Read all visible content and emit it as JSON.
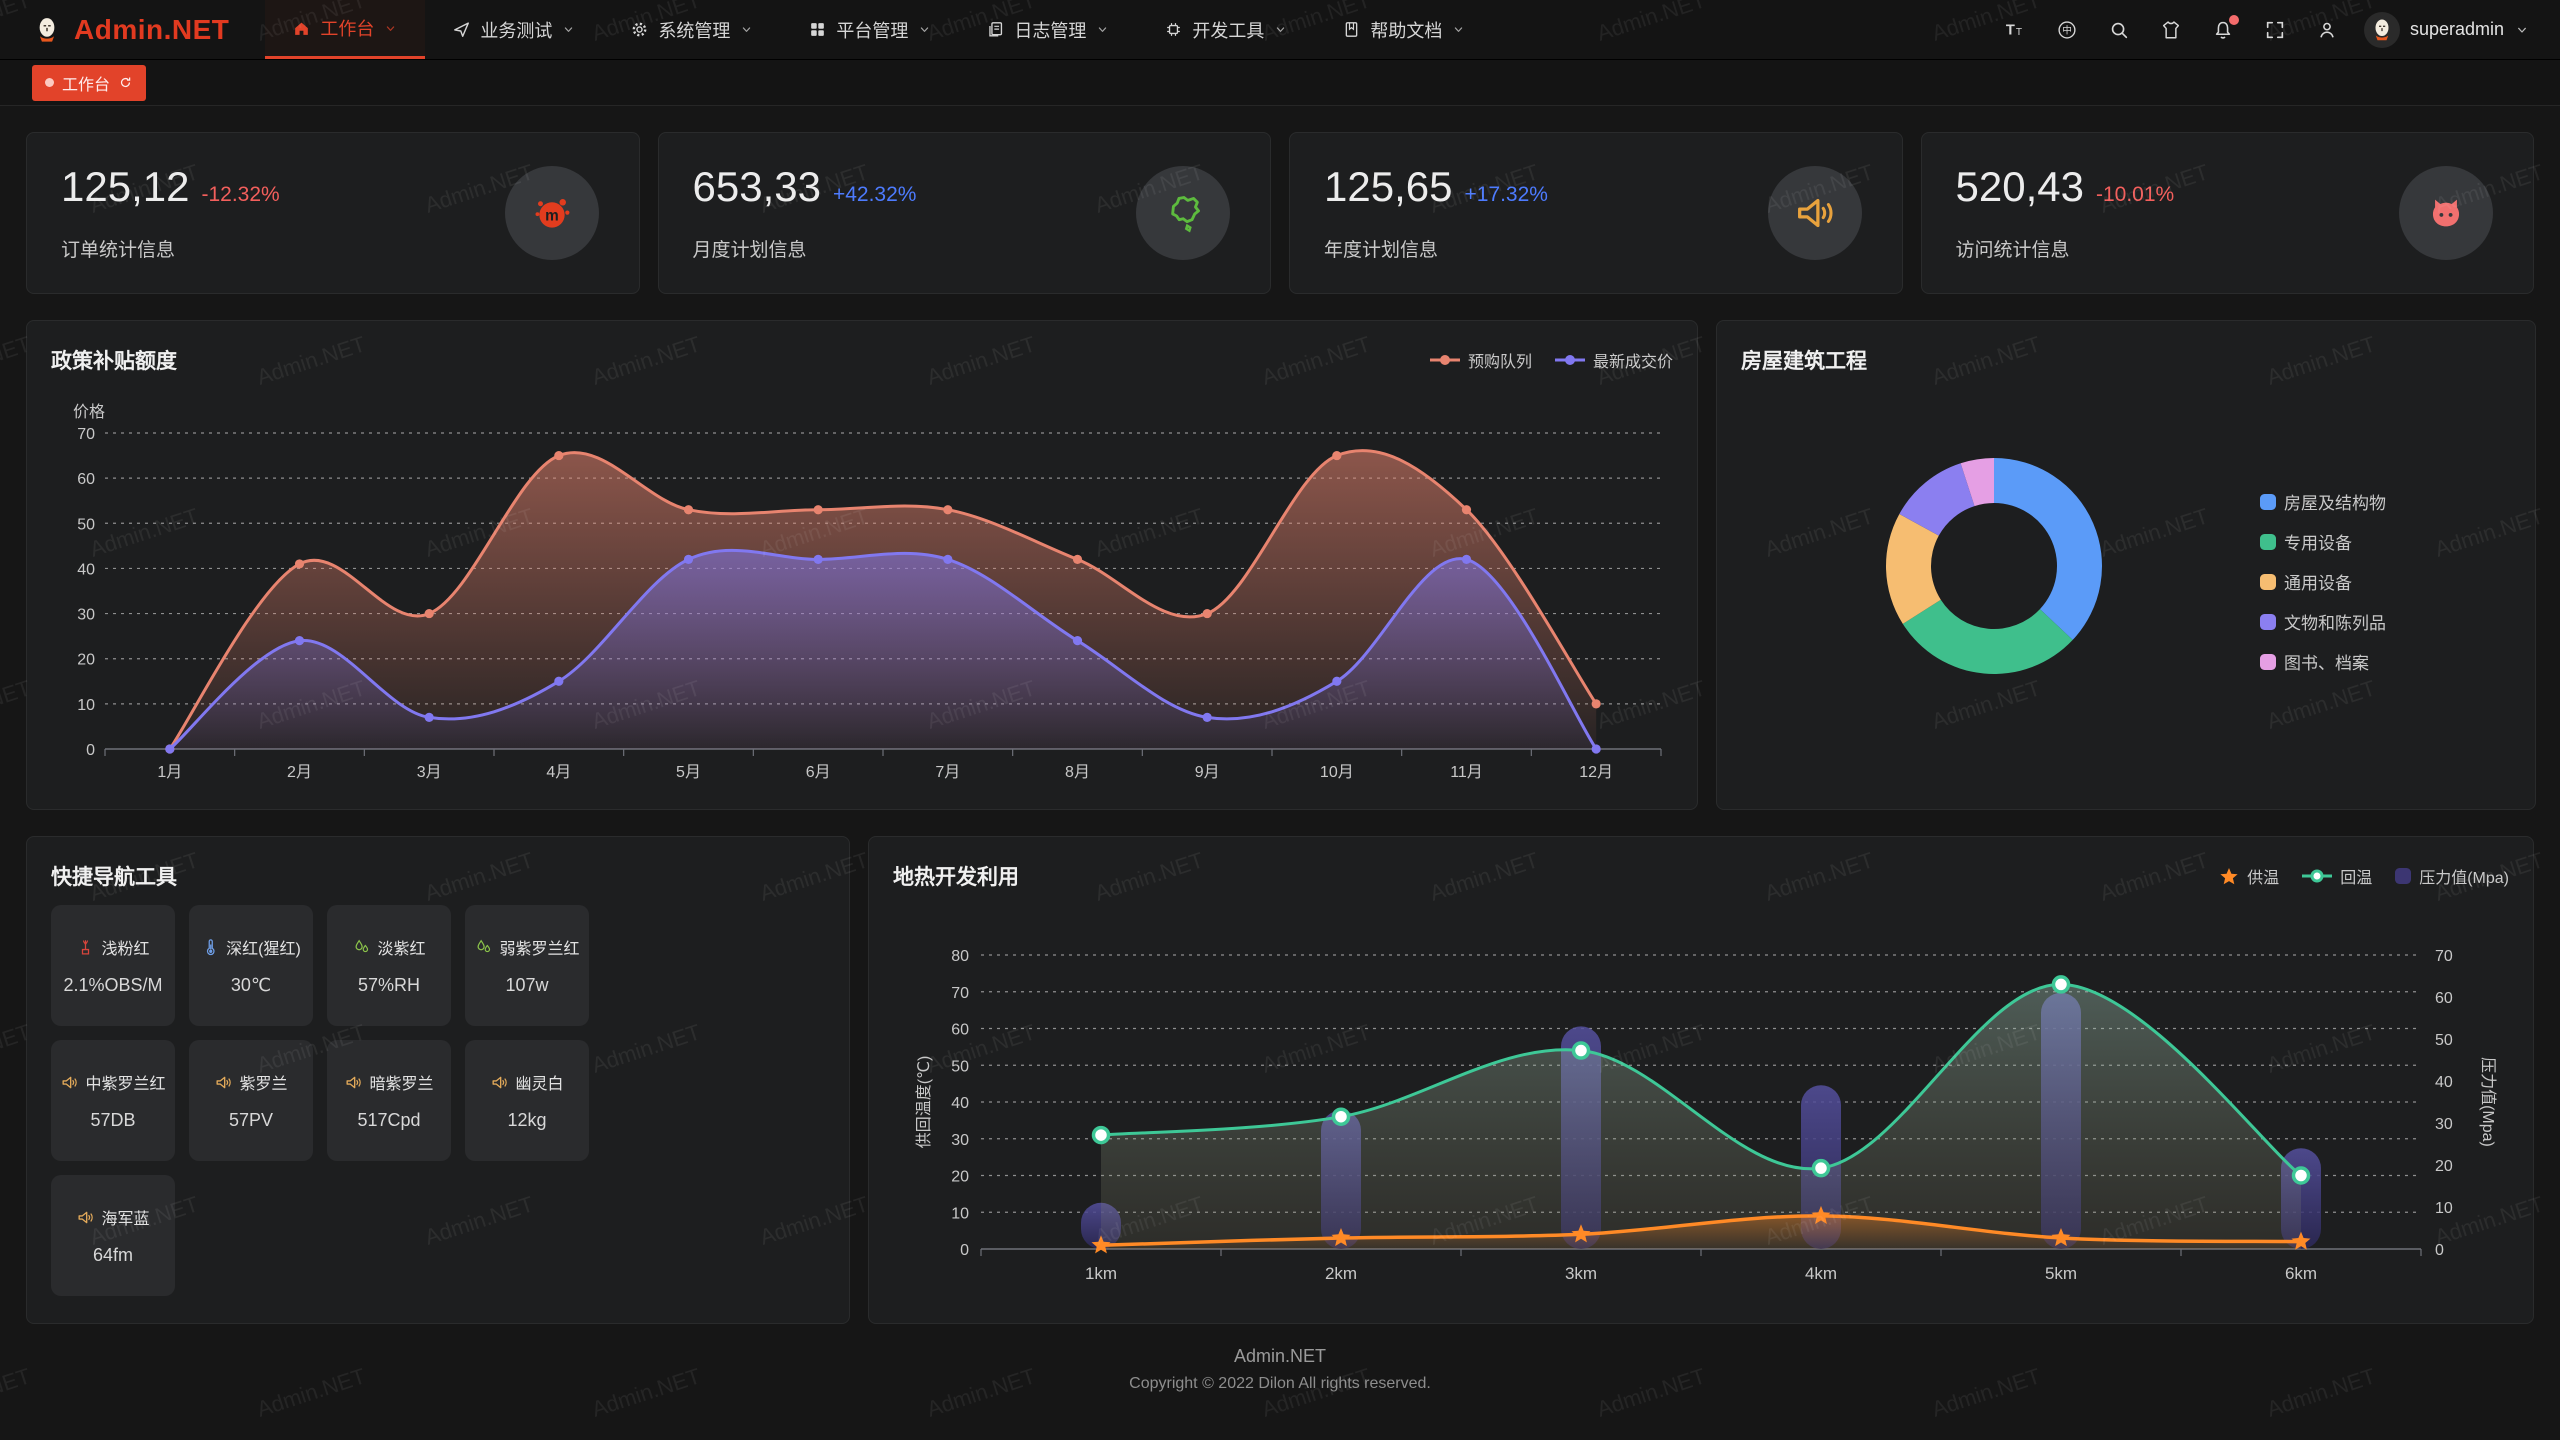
{
  "brand": {
    "name": "Admin.NET"
  },
  "navbar": {
    "menu": [
      {
        "label": "工作台",
        "icon": "home-icon",
        "active": true,
        "arrow": true
      },
      {
        "label": "业务测试",
        "icon": "send-icon",
        "active": false,
        "arrow": true
      },
      {
        "label": "系统管理",
        "icon": "gear-icon",
        "active": false,
        "arrow": true
      },
      {
        "label": "平台管理",
        "icon": "grid-icon",
        "active": false,
        "arrow": true
      },
      {
        "label": "日志管理",
        "icon": "file-icon",
        "active": false,
        "arrow": true
      },
      {
        "label": "开发工具",
        "icon": "chip-icon",
        "active": false,
        "arrow": true
      },
      {
        "label": "帮助文档",
        "icon": "book-icon",
        "active": false,
        "arrow": true
      }
    ],
    "tools": [
      {
        "icon": "font-size-icon",
        "badge": false
      },
      {
        "icon": "language-icon",
        "badge": false
      },
      {
        "icon": "search-icon",
        "badge": false
      },
      {
        "icon": "theme-icon",
        "badge": false
      },
      {
        "icon": "bell-icon",
        "badge": true
      },
      {
        "icon": "fullscreen-icon",
        "badge": false
      },
      {
        "icon": "user-icon",
        "badge": false
      }
    ],
    "user": {
      "name": "superadmin"
    }
  },
  "tabbar": {
    "tabs": [
      {
        "label": "工作台",
        "active": true
      }
    ]
  },
  "stats": [
    {
      "value": "125,12",
      "delta": "-12.32%",
      "trend": "down",
      "label": "订单统计信息",
      "icon": "splash-icon",
      "icon_color": "#e23c1e"
    },
    {
      "value": "653,33",
      "delta": "+42.32%",
      "trend": "up",
      "label": "月度计划信息",
      "icon": "china-map-icon",
      "icon_color": "#5dbb3e"
    },
    {
      "value": "125,65",
      "delta": "+17.32%",
      "trend": "up",
      "label": "年度计划信息",
      "icon": "speaker-icon",
      "icon_color": "#e8a23d"
    },
    {
      "value": "520,43",
      "delta": "-10.01%",
      "trend": "down",
      "label": "访问统计信息",
      "icon": "cat-icon",
      "icon_color": "#f1706f"
    }
  ],
  "chart_data": [
    {
      "id": "subsidy",
      "type": "area",
      "title": "政策补贴额度",
      "ylabel": "价格",
      "categories": [
        "1月",
        "2月",
        "3月",
        "4月",
        "5月",
        "6月",
        "7月",
        "8月",
        "9月",
        "10月",
        "11月",
        "12月"
      ],
      "ylim": [
        0,
        70
      ],
      "ytick": 10,
      "grid": true,
      "legend_position": "top-right",
      "series": [
        {
          "name": "预购队列",
          "color": "#e8846f",
          "values": [
            0,
            41,
            30,
            65,
            53,
            53,
            53,
            42,
            30,
            65,
            53,
            10
          ]
        },
        {
          "name": "最新成交价",
          "color": "#8178f0",
          "values": [
            0,
            24,
            7,
            15,
            42,
            42,
            42,
            24,
            7,
            15,
            42,
            0
          ]
        }
      ]
    },
    {
      "id": "building",
      "type": "pie",
      "title": "房屋建筑工程",
      "donut": true,
      "legend_position": "right",
      "labels": [
        "房屋及结构物",
        "专用设备",
        "通用设备",
        "文物和陈列品",
        "图书、档案"
      ],
      "values": [
        37,
        29,
        17,
        12,
        5
      ],
      "colors": [
        "#5b9bf8",
        "#3fbf8c",
        "#f6bd71",
        "#8b7ff0",
        "#e59fe4"
      ]
    },
    {
      "id": "geothermal",
      "type": "mixed",
      "title": "地热开发利用",
      "categories": [
        "1km",
        "2km",
        "3km",
        "4km",
        "5km",
        "6km"
      ],
      "ylabel_left": "供回温度(℃)",
      "ylabel_right": "压力值(Mpa)",
      "ylim_left": [
        0,
        80
      ],
      "ylim_right": [
        0,
        70
      ],
      "ytick": 10,
      "grid": true,
      "legend_position": "top-right",
      "series": [
        {
          "name": "供温",
          "type": "line",
          "axis": "left",
          "marker": "star",
          "color": "#ff8a26",
          "values": [
            1,
            3,
            4,
            9,
            3,
            2
          ]
        },
        {
          "name": "回温",
          "type": "line",
          "axis": "left",
          "marker": "circle",
          "color": "#3ec897",
          "values": [
            31,
            36,
            54,
            22,
            72,
            20
          ]
        },
        {
          "name": "压力值(Mpa)",
          "type": "bar",
          "axis": "right",
          "marker": "rect",
          "color": "#3c3672",
          "values": [
            11,
            33,
            53,
            39,
            61,
            24
          ]
        }
      ]
    }
  ],
  "quicknav": {
    "title": "快捷导航工具",
    "items": [
      {
        "icon": "fountain-icon",
        "color": "#d8453c",
        "name": "浅粉红",
        "value": "2.1%OBS/M"
      },
      {
        "icon": "thermometer-icon",
        "color": "#6f9fe8",
        "name": "深红(猩红)",
        "value": "30℃"
      },
      {
        "icon": "drops-icon",
        "color": "#8bc34a",
        "name": "淡紫红",
        "value": "57%RH"
      },
      {
        "icon": "drops-icon",
        "color": "#8bc34a",
        "name": "弱紫罗兰红",
        "value": "107w"
      },
      {
        "icon": "speaker-icon",
        "color": "#e3aa5a",
        "name": "中紫罗兰红",
        "value": "57DB"
      },
      {
        "icon": "speaker-icon",
        "color": "#e3aa5a",
        "name": "紫罗兰",
        "value": "57PV"
      },
      {
        "icon": "speaker-icon",
        "color": "#e3aa5a",
        "name": "暗紫罗兰",
        "value": "517Cpd"
      },
      {
        "icon": "speaker-icon",
        "color": "#e3aa5a",
        "name": "幽灵白",
        "value": "12kg"
      },
      {
        "icon": "speaker-icon",
        "color": "#e3aa5a",
        "name": "海军蓝",
        "value": "64fm"
      }
    ]
  },
  "footer": {
    "line1": "Admin.NET",
    "line2": "Copyright © 2022 Dilon All rights reserved."
  },
  "watermark": {
    "text": "Admin.NET"
  }
}
